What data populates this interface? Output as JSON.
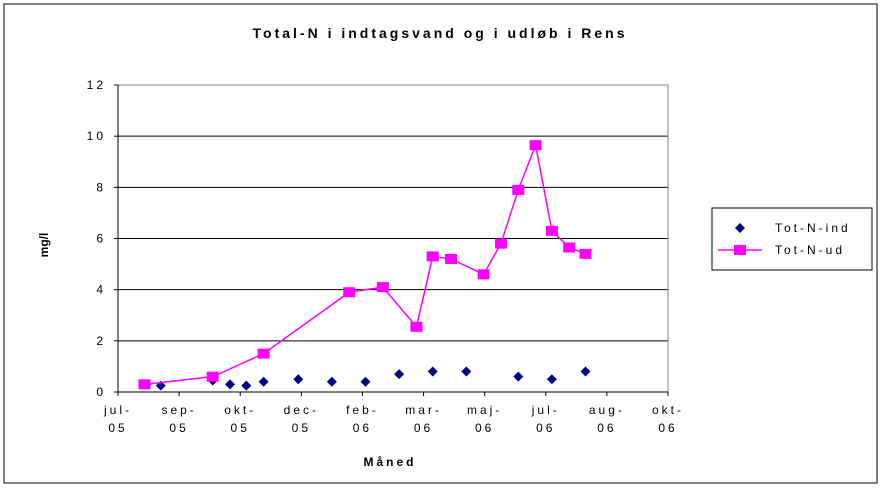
{
  "chart_data": {
    "type": "line",
    "title": "Total-N i indtagsvand og i udløb i Rens",
    "x_label": "Måned",
    "y_label": "mg/l",
    "xlim": [
      0,
      540
    ],
    "xticks": [
      {
        "value": 0,
        "label": "jul-05"
      },
      {
        "value": 60,
        "label": "sep-05"
      },
      {
        "value": 120,
        "label": "okt-05"
      },
      {
        "value": 180,
        "label": "dec-05"
      },
      {
        "value": 240,
        "label": "feb-06"
      },
      {
        "value": 300,
        "label": "mar-06"
      },
      {
        "value": 360,
        "label": "maj-06"
      },
      {
        "value": 420,
        "label": "jul-06"
      },
      {
        "value": 480,
        "label": "aug-06"
      },
      {
        "value": 540,
        "label": "okt-06"
      }
    ],
    "ylim": [
      0,
      12
    ],
    "yticks": [
      0,
      2,
      4,
      6,
      8,
      10,
      12
    ],
    "grid": true,
    "legend": "right",
    "series": [
      {
        "name": "Tot-N-ind",
        "color": "#000080",
        "marker": "diamond",
        "line": false,
        "x": [
          28,
          42,
          93,
          110,
          126,
          143,
          177,
          210,
          243,
          276,
          309,
          342,
          393,
          426,
          459
        ],
        "values": [
          0.3,
          0.25,
          0.45,
          0.3,
          0.25,
          0.4,
          0.5,
          0.4,
          0.4,
          0.7,
          0.8,
          0.8,
          0.6,
          0.5,
          0.8
        ]
      },
      {
        "name": "Tot-N-ud",
        "color": "#ff00ff",
        "marker": "square",
        "line": true,
        "x": [
          26,
          93,
          143,
          227,
          260,
          293,
          309,
          327,
          359,
          376,
          393,
          410,
          426,
          443,
          459
        ],
        "values": [
          0.3,
          0.6,
          1.5,
          3.9,
          4.1,
          2.55,
          5.3,
          5.2,
          4.6,
          5.8,
          7.9,
          9.65,
          6.3,
          5.65,
          5.4
        ]
      }
    ]
  }
}
